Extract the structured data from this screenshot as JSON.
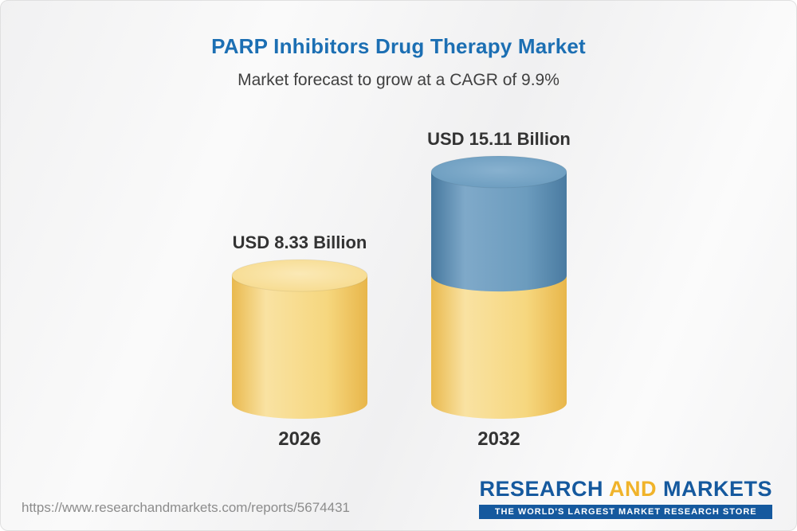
{
  "header": {
    "title": "PARP Inhibitors Drug Therapy Market",
    "subtitle": "Market forecast to grow at a CAGR of 9.9%"
  },
  "chart_data": {
    "type": "bar",
    "variant": "3d-cylinder",
    "title": "PARP Inhibitors Drug Therapy Market",
    "subtitle": "Market forecast to grow at a CAGR of 9.9%",
    "cagr": "9.9%",
    "unit": "USD Billion",
    "categories": [
      "2026",
      "2032"
    ],
    "values": [
      8.33,
      15.11
    ],
    "value_labels": [
      "USD 8.33 Billion",
      "USD 15.11 Billion"
    ],
    "colors": {
      "gold": "#f2cb68",
      "blue": "#5b8bb0"
    },
    "bars": [
      {
        "category": "2026",
        "value": 8.33,
        "label": "USD 8.33 Billion",
        "segments": [
          {
            "value": 8.33,
            "color": "gold"
          }
        ]
      },
      {
        "category": "2032",
        "value": 15.11,
        "label": "USD 15.11 Billion",
        "segments": [
          {
            "value": 8.33,
            "color": "gold"
          },
          {
            "value": 6.78,
            "color": "blue"
          }
        ]
      }
    ]
  },
  "footer": {
    "url": "https://www.researchandmarkets.com/reports/5674431",
    "logo": {
      "part1": "RESEARCH",
      "part2": "AND",
      "part3": "MARKETS",
      "tagline": "THE WORLD'S LARGEST MARKET RESEARCH STORE"
    }
  }
}
